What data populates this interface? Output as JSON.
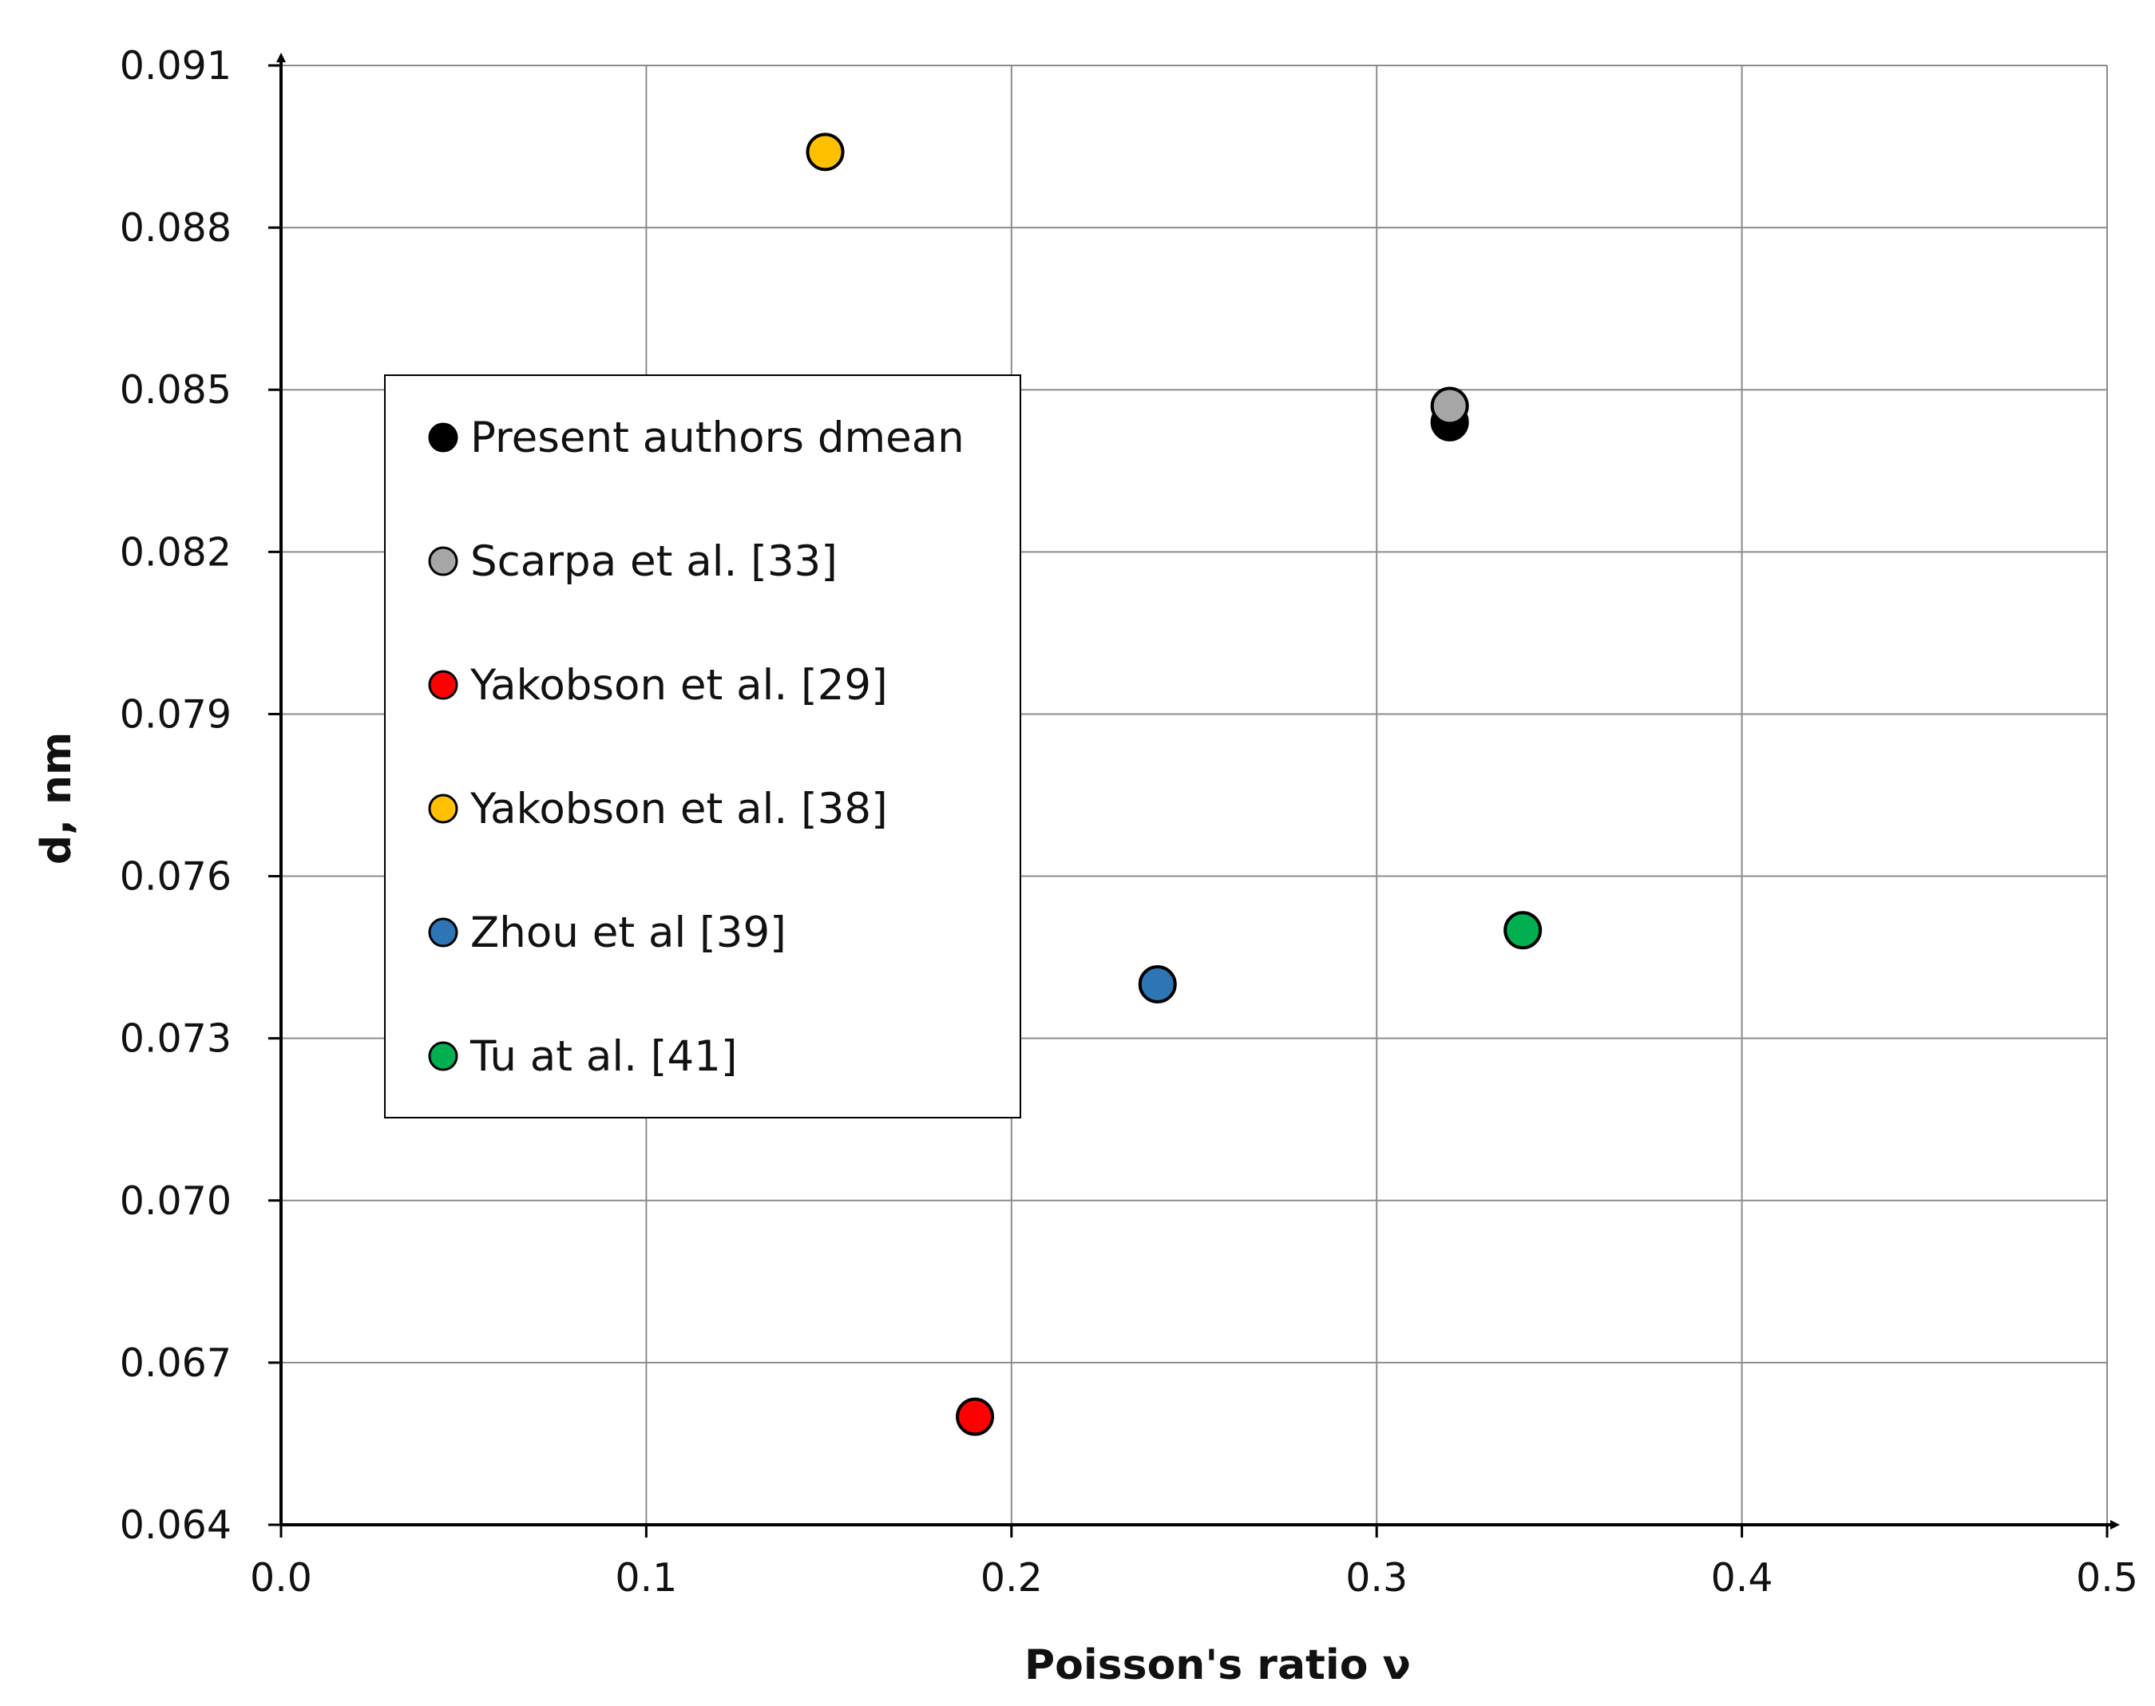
{
  "chart_data": {
    "type": "scatter",
    "title": "",
    "xlabel": "Poisson's ratio ν",
    "ylabel": "d, nm",
    "xlim": [
      0.0,
      0.5
    ],
    "ylim": [
      0.064,
      0.091
    ],
    "x_ticks": [
      0.0,
      0.1,
      0.2,
      0.3,
      0.4,
      0.5
    ],
    "x_tick_labels": [
      "0.0",
      "0.1",
      "0.2",
      "0.3",
      "0.4",
      "0.5"
    ],
    "y_ticks": [
      0.064,
      0.067,
      0.07,
      0.073,
      0.076,
      0.079,
      0.082,
      0.085,
      0.088,
      0.091
    ],
    "y_tick_labels": [
      "0.064",
      "0.067",
      "0.070",
      "0.073",
      "0.076",
      "0.079",
      "0.082",
      "0.085",
      "0.088",
      "0.091"
    ],
    "grid": true,
    "legend_position": "left-center, inside plot",
    "series": [
      {
        "name": "Present authors dmean",
        "color": "#000000",
        "points": [
          {
            "x": 0.32,
            "y": 0.0844
          }
        ]
      },
      {
        "name": "Scarpa et al. [33]",
        "color": "#a6a6a6",
        "points": [
          {
            "x": 0.32,
            "y": 0.0847
          }
        ]
      },
      {
        "name": "Yakobson et al. [29]",
        "color": "#ff0000",
        "points": [
          {
            "x": 0.19,
            "y": 0.066
          }
        ]
      },
      {
        "name": "Yakobson et al. [38]",
        "color": "#ffc000",
        "points": [
          {
            "x": 0.149,
            "y": 0.0894
          }
        ]
      },
      {
        "name": "Zhou et al [39]",
        "color": "#2e75b6",
        "points": [
          {
            "x": 0.24,
            "y": 0.074
          }
        ]
      },
      {
        "name": "Tu at al. [41]",
        "color": "#00b050",
        "points": [
          {
            "x": 0.34,
            "y": 0.075
          }
        ]
      }
    ]
  }
}
